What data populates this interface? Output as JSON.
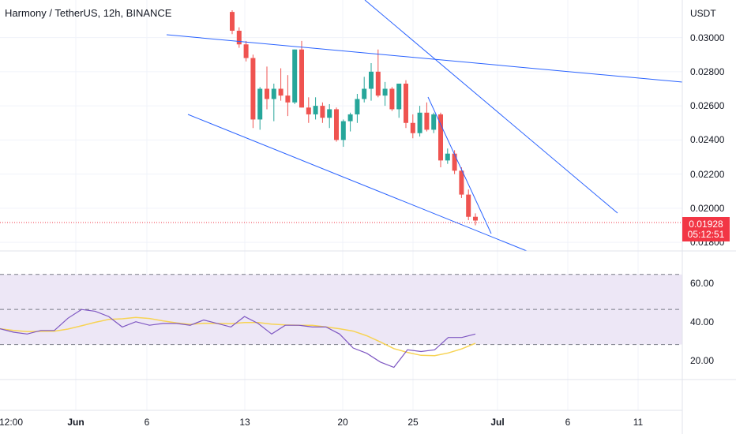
{
  "header": {
    "title": "Harmony / TetherUS, 12h, BINANCE"
  },
  "price_axis": {
    "unit": "USDT",
    "labels": [
      "0.03000",
      "0.02800",
      "0.02600",
      "0.02400",
      "0.02200",
      "0.02000",
      "0.01800"
    ],
    "current_price": "0.01928",
    "countdown": "05:12:51"
  },
  "rsi_axis": {
    "labels": [
      "60.00",
      "40.00",
      "20.00"
    ]
  },
  "time_axis": {
    "labels": [
      "12:00",
      "Jun",
      "6",
      "13",
      "20",
      "25",
      "Jul",
      "6",
      "11"
    ]
  },
  "colors": {
    "bull": "#26a69a",
    "bear": "#ef5350",
    "trendline": "#2962ff",
    "rsi": "#7e57c2",
    "rsi_ma": "#f7d354",
    "rsi_band": "#ede7f6"
  },
  "chart_data": {
    "type": "candlestick",
    "candles": [
      [
        0.0315,
        0.0316,
        0.0302,
        0.0304
      ],
      [
        0.0304,
        0.0306,
        0.0294,
        0.0296
      ],
      [
        0.0296,
        0.0298,
        0.0286,
        0.0288
      ],
      [
        0.0288,
        0.029,
        0.0247,
        0.0252
      ],
      [
        0.0252,
        0.0271,
        0.0246,
        0.027
      ],
      [
        0.027,
        0.0283,
        0.0258,
        0.0264
      ],
      [
        0.0264,
        0.0273,
        0.0251,
        0.027
      ],
      [
        0.027,
        0.0282,
        0.0263,
        0.0266
      ],
      [
        0.0266,
        0.0278,
        0.0254,
        0.0262
      ],
      [
        0.0262,
        0.0293,
        0.0261,
        0.0293
      ],
      [
        0.0293,
        0.0298,
        0.0259,
        0.0259
      ],
      [
        0.0259,
        0.0265,
        0.025,
        0.0255
      ],
      [
        0.0255,
        0.0265,
        0.0252,
        0.026
      ],
      [
        0.026,
        0.0262,
        0.025,
        0.0253
      ],
      [
        0.0253,
        0.0261,
        0.0247,
        0.0258
      ],
      [
        0.0258,
        0.0259,
        0.0239,
        0.024
      ],
      [
        0.024,
        0.0252,
        0.0236,
        0.0251
      ],
      [
        0.0251,
        0.0256,
        0.0245,
        0.0255
      ],
      [
        0.0255,
        0.0267,
        0.025,
        0.0264
      ],
      [
        0.0264,
        0.0277,
        0.0262,
        0.027
      ],
      [
        0.027,
        0.0285,
        0.0263,
        0.028
      ],
      [
        0.028,
        0.0293,
        0.0265,
        0.0266
      ],
      [
        0.0266,
        0.0274,
        0.026,
        0.027
      ],
      [
        0.027,
        0.0271,
        0.0257,
        0.0258
      ],
      [
        0.0258,
        0.0273,
        0.0253,
        0.0273
      ],
      [
        0.0273,
        0.0275,
        0.0247,
        0.025
      ],
      [
        0.025,
        0.0255,
        0.0241,
        0.0244
      ],
      [
        0.0244,
        0.026,
        0.0242,
        0.0256
      ],
      [
        0.0256,
        0.0262,
        0.0245,
        0.0246
      ],
      [
        0.0246,
        0.0256,
        0.0244,
        0.0255
      ],
      [
        0.0255,
        0.0256,
        0.0224,
        0.0228
      ],
      [
        0.0228,
        0.0235,
        0.0226,
        0.0232
      ],
      [
        0.0232,
        0.0234,
        0.022,
        0.0222
      ],
      [
        0.0222,
        0.0224,
        0.0206,
        0.0208
      ],
      [
        0.0208,
        0.0211,
        0.0193,
        0.0195
      ],
      [
        0.0195,
        0.0197,
        0.019,
        0.01928
      ]
    ],
    "rsi": [
      39,
      37,
      36,
      38,
      38,
      45,
      50,
      49,
      46,
      40,
      43,
      41,
      42,
      42,
      41,
      44,
      42,
      40,
      46,
      42,
      36,
      41,
      41,
      40,
      40,
      36,
      28,
      25,
      20,
      17,
      27,
      26,
      27,
      34,
      34,
      36
    ],
    "price_range": [
      0.0175,
      0.0322
    ],
    "rsi_range": [
      10,
      78
    ],
    "rsi_bands": [
      70,
      50,
      30
    ]
  }
}
